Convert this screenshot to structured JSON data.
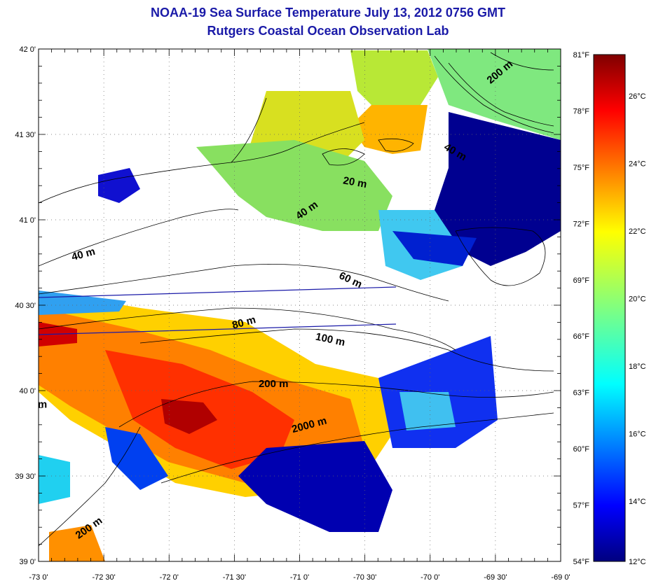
{
  "title": "NOAA-19 Sea Surface Temperature July 13, 2012 0756 GMT",
  "subtitle": "Rutgers Coastal Ocean Observation Lab",
  "map": {
    "lon_labels": [
      "-73 0'",
      "-72 30'",
      "-72 0'",
      "-71 30'",
      "-71 0'",
      "-70 30'",
      "-70 0'",
      "-69 30'",
      "-69 0'"
    ],
    "lat_labels": [
      "42 0'",
      "41 30'",
      "41 0'",
      "40 30'",
      "40 0'",
      "39 30'",
      "39 0'"
    ],
    "contour_labels": [
      {
        "text": "200 m",
        "lon": -69.45,
        "lat": 41.85,
        "angle": -40
      },
      {
        "text": "40 m",
        "lon": -69.82,
        "lat": 41.38,
        "angle": 30
      },
      {
        "text": "20 m",
        "lon": -70.58,
        "lat": 41.2,
        "angle": 10
      },
      {
        "text": "40 m",
        "lon": -70.93,
        "lat": 41.04,
        "angle": -35
      },
      {
        "text": "40 m",
        "lon": -72.65,
        "lat": 40.78,
        "angle": -15
      },
      {
        "text": "60 m",
        "lon": -70.62,
        "lat": 40.63,
        "angle": 25
      },
      {
        "text": "80 m",
        "lon": -71.42,
        "lat": 40.38,
        "angle": -15
      },
      {
        "text": "100 m",
        "lon": -70.77,
        "lat": 40.28,
        "angle": 12
      },
      {
        "text": "200 m",
        "lon": -71.2,
        "lat": 40.02,
        "angle": 0
      },
      {
        "text": "2000 m",
        "lon": -70.92,
        "lat": 39.78,
        "angle": -15
      },
      {
        "text": "200 m",
        "lon": -72.6,
        "lat": 39.18,
        "angle": -35
      },
      {
        "text": "m",
        "lon": -72.97,
        "lat": 39.9,
        "angle": 0
      }
    ]
  },
  "colorbar": {
    "f_labels": [
      "81°F",
      "78°F",
      "75°F",
      "72°F",
      "69°F",
      "66°F",
      "63°F",
      "60°F",
      "57°F",
      "54°F"
    ],
    "c_labels": [
      "26°C",
      "24°C",
      "22°C",
      "20°C",
      "18°C",
      "16°C",
      "14°C",
      "12°C"
    ]
  },
  "colors": {
    "title": "#1a1aa8",
    "section_line": "#1a1aa8"
  }
}
